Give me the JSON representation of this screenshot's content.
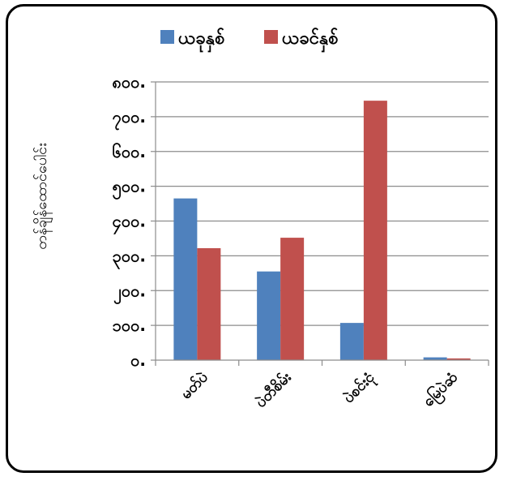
{
  "chart_data": {
    "type": "bar",
    "categories": [
      "မတ်ပဲ",
      "ပဲတီစိမ်း",
      "ပဲစင်းငုံ",
      "မြေပဲဆံ"
    ],
    "series": [
      {
        "name": "ယခုနှစ်",
        "values": [
          465,
          255,
          107,
          8
        ],
        "color": "#4F81BD"
      },
      {
        "name": "ယခင်နှစ်",
        "values": [
          322,
          352,
          746,
          5
        ],
        "color": "#C0504D"
      }
    ],
    "ylabel": "တန်ချိန်ထောင်ပေါင်း",
    "ylim": [
      0,
      800
    ],
    "yticks": [
      0,
      100,
      200,
      300,
      400,
      500,
      600,
      700,
      800
    ],
    "ytick_labels": [
      "၀.",
      "၁၀၀.",
      "၂၀၀.",
      "၃၀၀.",
      "၄၀၀.",
      "၅၀၀.",
      "၆၀၀.",
      "၇၀၀.",
      "၈၀၀."
    ],
    "grid": true,
    "legend": "top-center"
  }
}
